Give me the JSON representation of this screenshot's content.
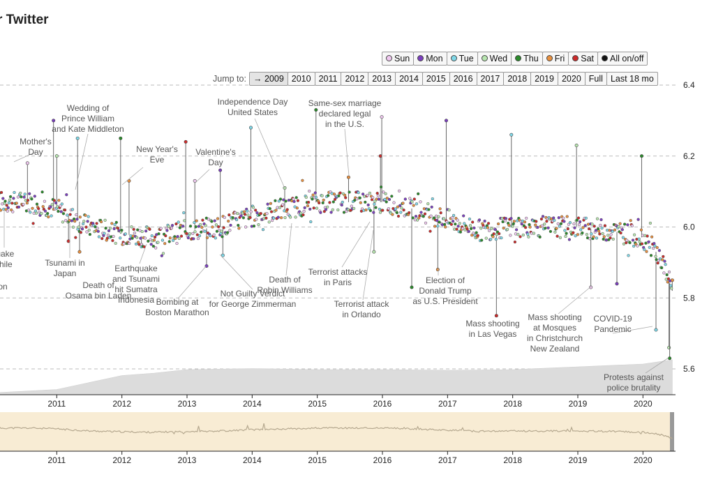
{
  "title": "r Twitter",
  "legend": {
    "days": [
      {
        "label": "Sun",
        "color": "#f0c8f0"
      },
      {
        "label": "Mon",
        "color": "#7b3fbf"
      },
      {
        "label": "Tue",
        "color": "#7fd8e8"
      },
      {
        "label": "Wed",
        "color": "#b8e6b0"
      },
      {
        "label": "Thu",
        "color": "#2a8a2a"
      },
      {
        "label": "Fri",
        "color": "#e89040"
      },
      {
        "label": "Sat",
        "color": "#cc2a2a"
      }
    ],
    "all_label": "All on/off",
    "all_color": "#111111"
  },
  "jump": {
    "label": "Jump to:",
    "buttons": [
      "→ 2009",
      "2010",
      "2011",
      "2012",
      "2013",
      "2014",
      "2015",
      "2016",
      "2017",
      "2018",
      "2019",
      "2020",
      "Full",
      "Last 18 mo"
    ]
  },
  "chart_data": {
    "type": "scatter",
    "y_ticks": [
      "6.4",
      "6.2",
      "6.0",
      "5.8",
      "5.6"
    ],
    "ylim": [
      5.55,
      6.45
    ],
    "x_ticks": [
      "2011",
      "2012",
      "2013",
      "2014",
      "2015",
      "2016",
      "2017",
      "2018",
      "2019",
      "2020"
    ],
    "grid": "horizontal dashed",
    "context_x_ticks": [
      "2011",
      "2012",
      "2013",
      "2014",
      "2015",
      "2016",
      "2017",
      "2018",
      "2019",
      "2020"
    ],
    "series_baseline": [
      [
        2010.0,
        6.07
      ],
      [
        2010.6,
        6.07
      ],
      [
        2011.0,
        6.05
      ],
      [
        2011.5,
        6.0
      ],
      [
        2012.0,
        5.98
      ],
      [
        2012.5,
        5.97
      ],
      [
        2013.0,
        5.99
      ],
      [
        2013.5,
        6.0
      ],
      [
        2014.0,
        6.03
      ],
      [
        2014.5,
        6.05
      ],
      [
        2015.0,
        6.07
      ],
      [
        2015.5,
        6.07
      ],
      [
        2016.0,
        6.07
      ],
      [
        2016.5,
        6.05
      ],
      [
        2017.0,
        6.02
      ],
      [
        2017.5,
        5.99
      ],
      [
        2018.0,
        6.0
      ],
      [
        2018.5,
        6.0
      ],
      [
        2019.0,
        6.0
      ],
      [
        2019.5,
        5.99
      ],
      [
        2020.0,
        5.97
      ],
      [
        2020.2,
        5.93
      ],
      [
        2020.3,
        5.9
      ],
      [
        2020.45,
        5.82
      ]
    ],
    "spikes": [
      {
        "x": 2010.55,
        "y": 6.18
      },
      {
        "x": 2010.95,
        "y": 6.3
      },
      {
        "x": 2011.32,
        "y": 6.25
      },
      {
        "x": 2011.0,
        "y": 6.2
      },
      {
        "x": 2011.98,
        "y": 6.25
      },
      {
        "x": 2012.11,
        "y": 6.13
      },
      {
        "x": 2012.98,
        "y": 6.24
      },
      {
        "x": 2013.12,
        "y": 6.13
      },
      {
        "x": 2013.51,
        "y": 6.16
      },
      {
        "x": 2013.98,
        "y": 6.28
      },
      {
        "x": 2014.5,
        "y": 6.11
      },
      {
        "x": 2014.98,
        "y": 6.33
      },
      {
        "x": 2015.48,
        "y": 6.14
      },
      {
        "x": 2015.97,
        "y": 6.2
      },
      {
        "x": 2015.99,
        "y": 6.31
      },
      {
        "x": 2016.98,
        "y": 6.3
      },
      {
        "x": 2017.98,
        "y": 6.26
      },
      {
        "x": 2018.98,
        "y": 6.23
      },
      {
        "x": 2019.98,
        "y": 6.2
      },
      {
        "x": 2011.35,
        "y": 5.93
      },
      {
        "x": 2011.18,
        "y": 5.96
      },
      {
        "x": 2012.3,
        "y": 5.95
      },
      {
        "x": 2013.3,
        "y": 5.89
      },
      {
        "x": 2013.55,
        "y": 5.92
      },
      {
        "x": 2015.87,
        "y": 5.93
      },
      {
        "x": 2016.45,
        "y": 5.83
      },
      {
        "x": 2016.85,
        "y": 5.88
      },
      {
        "x": 2017.75,
        "y": 5.75
      },
      {
        "x": 2019.2,
        "y": 5.83
      },
      {
        "x": 2019.6,
        "y": 5.84
      },
      {
        "x": 2020.2,
        "y": 5.71
      },
      {
        "x": 2020.4,
        "y": 5.66
      },
      {
        "x": 2020.41,
        "y": 5.63
      },
      {
        "x": 2020.45,
        "y": 5.85
      }
    ],
    "volume_level": [
      [
        2010.0,
        0.05
      ],
      [
        2011.0,
        0.15
      ],
      [
        2012.0,
        0.55
      ],
      [
        2012.5,
        0.62
      ],
      [
        2013.0,
        0.72
      ],
      [
        2014.0,
        0.75
      ],
      [
        2015.0,
        0.72
      ],
      [
        2016.0,
        0.72
      ],
      [
        2017.0,
        0.7
      ],
      [
        2018.0,
        0.72
      ],
      [
        2019.0,
        0.8
      ],
      [
        2020.0,
        0.88
      ],
      [
        2020.45,
        1.0
      ]
    ],
    "annotations": [
      {
        "lines": [
          "Mother's",
          "Day"
        ]
      },
      {
        "lines": [
          "Wedding of",
          "Prince William",
          "and Kate Middleton"
        ]
      },
      {
        "lines": [
          "New Year's",
          "Eve"
        ]
      },
      {
        "lines": [
          "Valentine's",
          "Day"
        ]
      },
      {
        "lines": [
          "Independence Day",
          "United States"
        ]
      },
      {
        "lines": [
          "Same-sex marriage",
          "declared legal",
          "in the U.S."
        ]
      },
      {
        "lines": [
          "quake",
          "Chile"
        ]
      },
      {
        "lines": [
          "on"
        ]
      },
      {
        "lines": [
          "Tsunami in",
          "Japan"
        ]
      },
      {
        "lines": [
          "Death of",
          "Osama bin Laden"
        ]
      },
      {
        "lines": [
          "Earthquake",
          "and Tsunami",
          "hit Sumatra",
          "Indonesia"
        ]
      },
      {
        "lines": [
          "Bombing at",
          "Boston Marathon"
        ]
      },
      {
        "lines": [
          "Not Guilty Verdict",
          "for George Zimmerman"
        ]
      },
      {
        "lines": [
          "Death of",
          "Robin Williams"
        ]
      },
      {
        "lines": [
          "Terrorist attacks",
          "in Paris"
        ]
      },
      {
        "lines": [
          "Terrorist attack",
          "in Orlando"
        ]
      },
      {
        "lines": [
          "Election of",
          "Donald Trump",
          "as U.S. President"
        ]
      },
      {
        "lines": [
          "Mass shooting",
          "in Las Vegas"
        ]
      },
      {
        "lines": [
          "Mass shooting",
          "at Mosques",
          "in Christchurch",
          "New Zealand"
        ]
      },
      {
        "lines": [
          "COVID-19",
          "Pandemic"
        ]
      },
      {
        "lines": [
          "Protests against",
          "police brutality"
        ]
      }
    ]
  }
}
